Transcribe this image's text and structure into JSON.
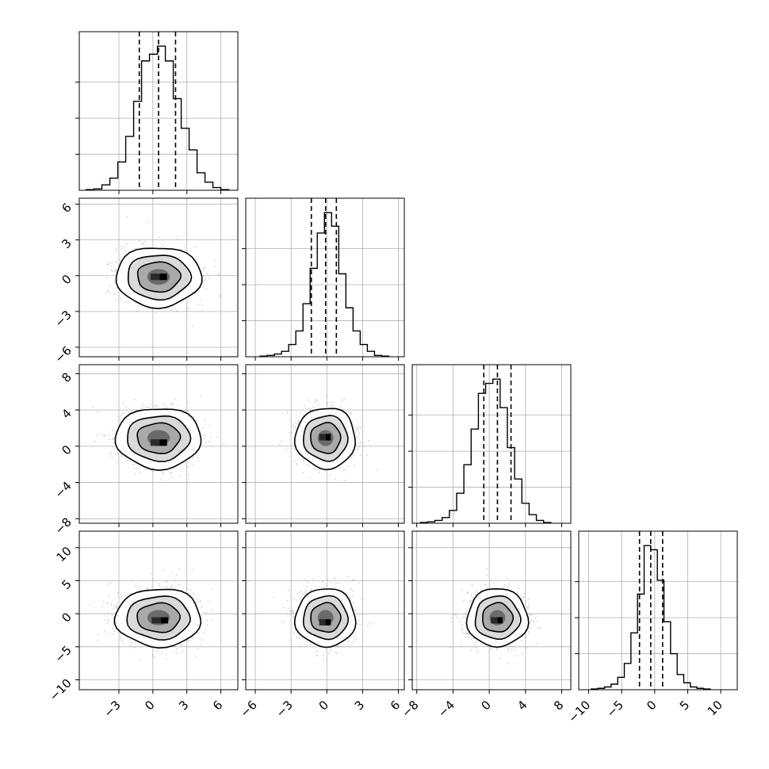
{
  "chart_data": {
    "type": "corner",
    "colors": {
      "ink": "#000000",
      "grid": "#b0b0b0",
      "scatter": "#9a9a9a"
    },
    "parameters": [
      {
        "index": 0,
        "range": [
          -6.5,
          7.5
        ],
        "ticks": [
          -3,
          0,
          3,
          6
        ],
        "tick_labels": [
          "−3",
          "0",
          "3",
          "6"
        ]
      },
      {
        "index": 1,
        "range": [
          -6.8,
          6.5
        ],
        "ticks": [
          -6,
          -3,
          0,
          3,
          6
        ],
        "tick_labels": [
          "−6",
          "−3",
          "0",
          "3",
          "6"
        ]
      },
      {
        "index": 2,
        "range": [
          -8.5,
          9.0
        ],
        "ticks": [
          -8,
          -4,
          0,
          4,
          8
        ],
        "tick_labels": [
          "−8",
          "−4",
          "0",
          "4",
          "8"
        ]
      },
      {
        "index": 3,
        "range": [
          -11.5,
          12.5
        ],
        "ticks": [
          -10,
          -5,
          0,
          5,
          10
        ],
        "tick_labels": [
          "−10",
          "−5",
          "0",
          "5",
          "10"
        ]
      }
    ],
    "histograms": [
      {
        "param": 0,
        "quantiles": [
          -1.2,
          0.5,
          2.0
        ],
        "bin_edges": [
          -5.9,
          -5.2,
          -4.5,
          -3.8,
          -3.1,
          -2.4,
          -1.7,
          -1.0,
          -0.3,
          0.4,
          1.1,
          1.8,
          2.5,
          3.2,
          3.9,
          4.6,
          5.3,
          6.0,
          6.7
        ],
        "counts": [
          0.5,
          1,
          4,
          9,
          21,
          40,
          66,
          96,
          101,
          107,
          96,
          68,
          46,
          30,
          13,
          6,
          2,
          0.5
        ]
      },
      {
        "param": 1,
        "quantiles": [
          -1.3,
          -0.1,
          0.8
        ],
        "bin_edges": [
          -5.6,
          -5.0,
          -4.4,
          -3.8,
          -3.2,
          -2.6,
          -2.0,
          -1.4,
          -0.8,
          -0.2,
          0.4,
          1.0,
          1.6,
          2.2,
          2.8,
          3.4,
          4.0,
          4.6,
          5.2
        ],
        "counts": [
          0.5,
          1,
          2,
          4,
          9,
          19,
          39,
          65,
          91,
          106,
          96,
          61,
          36,
          19,
          9,
          4,
          1,
          0.5
        ]
      },
      {
        "param": 2,
        "quantiles": [
          -0.6,
          0.9,
          2.4
        ],
        "bin_edges": [
          -7.6,
          -6.8,
          -6.0,
          -5.2,
          -4.4,
          -3.6,
          -2.8,
          -2.0,
          -1.2,
          -0.4,
          0.4,
          1.2,
          2.0,
          2.8,
          3.6,
          4.4,
          5.2,
          6.0,
          6.8
        ],
        "counts": [
          0.5,
          1,
          2,
          4,
          9,
          21,
          41,
          66,
          91,
          98,
          101,
          81,
          53,
          31,
          14,
          6,
          2,
          0.5
        ]
      },
      {
        "param": 3,
        "quantiles": [
          -2.3,
          -0.6,
          1.2
        ],
        "bin_edges": [
          -9.6,
          -8.6,
          -7.6,
          -6.6,
          -5.6,
          -4.6,
          -3.6,
          -2.6,
          -1.6,
          -0.6,
          0.4,
          1.4,
          2.4,
          3.4,
          4.4,
          5.4,
          6.4,
          7.4,
          8.4
        ],
        "counts": [
          0.5,
          1,
          2,
          4,
          9,
          19,
          41,
          69,
          104,
          101,
          79,
          49,
          26,
          11,
          5,
          2,
          1,
          0.5
        ]
      }
    ],
    "pairs": [
      {
        "x_param": 0,
        "y_param": 1,
        "center": [
          0.5,
          -0.1
        ],
        "sd": [
          1.8,
          1.2
        ],
        "peak": [
          0.6,
          -0.1
        ]
      },
      {
        "x_param": 0,
        "y_param": 2,
        "center": [
          0.5,
          0.9
        ],
        "sd": [
          1.8,
          1.6
        ],
        "peak": [
          0.6,
          0.4
        ]
      },
      {
        "x_param": 1,
        "y_param": 2,
        "center": [
          -0.1,
          0.9
        ],
        "sd": [
          1.2,
          1.6
        ],
        "peak": [
          -0.1,
          1.0
        ]
      },
      {
        "x_param": 0,
        "y_param": 3,
        "center": [
          0.5,
          -0.6
        ],
        "sd": [
          1.8,
          2.1
        ],
        "peak": [
          0.7,
          -1.0
        ]
      },
      {
        "x_param": 1,
        "y_param": 3,
        "center": [
          -0.1,
          -0.6
        ],
        "sd": [
          1.2,
          2.1
        ],
        "peak": [
          -0.1,
          -1.3
        ]
      },
      {
        "x_param": 2,
        "y_param": 3,
        "center": [
          0.9,
          -0.6
        ],
        "sd": [
          1.6,
          2.1
        ],
        "peak": [
          0.9,
          -1.0
        ]
      }
    ],
    "grid": true,
    "legend": "none",
    "xlabel": "",
    "ylabel": ""
  }
}
